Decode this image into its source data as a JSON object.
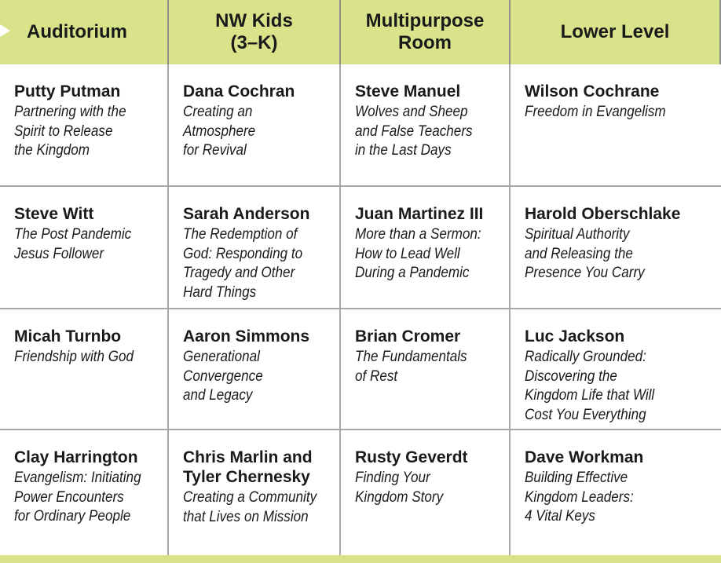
{
  "colors": {
    "header_bg": "#d9e38a",
    "grid_line": "#a8a8a8",
    "text": "#1a1a1a"
  },
  "headers": [
    {
      "label": "Auditorium"
    },
    {
      "label": "NW Kids\n(3–K)"
    },
    {
      "label": "Multipurpose\nRoom"
    },
    {
      "label": "Lower Level"
    }
  ],
  "rows": [
    [
      {
        "speaker": "Putty Putman",
        "talk": "Partnering with the\nSpirit to Release\nthe Kingdom"
      },
      {
        "speaker": "Dana Cochran",
        "talk": "Creating an\nAtmosphere\nfor Revival"
      },
      {
        "speaker": "Steve Manuel",
        "talk": "Wolves and Sheep\nand  False Teachers\nin the Last Days"
      },
      {
        "speaker": "Wilson Cochrane",
        "talk": "Freedom in Evangelism"
      }
    ],
    [
      {
        "speaker": "Steve Witt",
        "talk": "The Post Pandemic\nJesus Follower"
      },
      {
        "speaker": "Sarah Anderson",
        "talk": "The Redemption of\nGod: Responding to\nTragedy and Other\nHard Things"
      },
      {
        "speaker": "Juan Martinez III",
        "talk": "More than a Sermon:\nHow to Lead Well\nDuring a Pandemic"
      },
      {
        "speaker": "Harold Oberschlake",
        "talk": "Spiritual Authority\nand Releasing the\nPresence You Carry"
      }
    ],
    [
      {
        "speaker": "Micah Turnbo",
        "talk": "Friendship with God"
      },
      {
        "speaker": "Aaron Simmons",
        "talk": "Generational\nConvergence\nand Legacy"
      },
      {
        "speaker": "Brian Cromer",
        "talk": "The Fundamentals\nof Rest"
      },
      {
        "speaker": "Luc Jackson",
        "talk": "Radically Grounded:\nDiscovering the\nKingdom Life that Will\nCost You Everything"
      }
    ],
    [
      {
        "speaker": "Clay Harrington",
        "talk": "Evangelism: Initiating\nPower Encounters\nfor Ordinary People"
      },
      {
        "speaker": "Chris Marlin and\nTyler Chernesky",
        "talk": "Creating a Community\nthat Lives on Mission"
      },
      {
        "speaker": "Rusty Geverdt",
        "talk": "Finding Your\nKingdom Story"
      },
      {
        "speaker": "Dave Workman",
        "talk": "Building Effective\nKingdom Leaders:\n4 Vital Keys"
      }
    ]
  ]
}
